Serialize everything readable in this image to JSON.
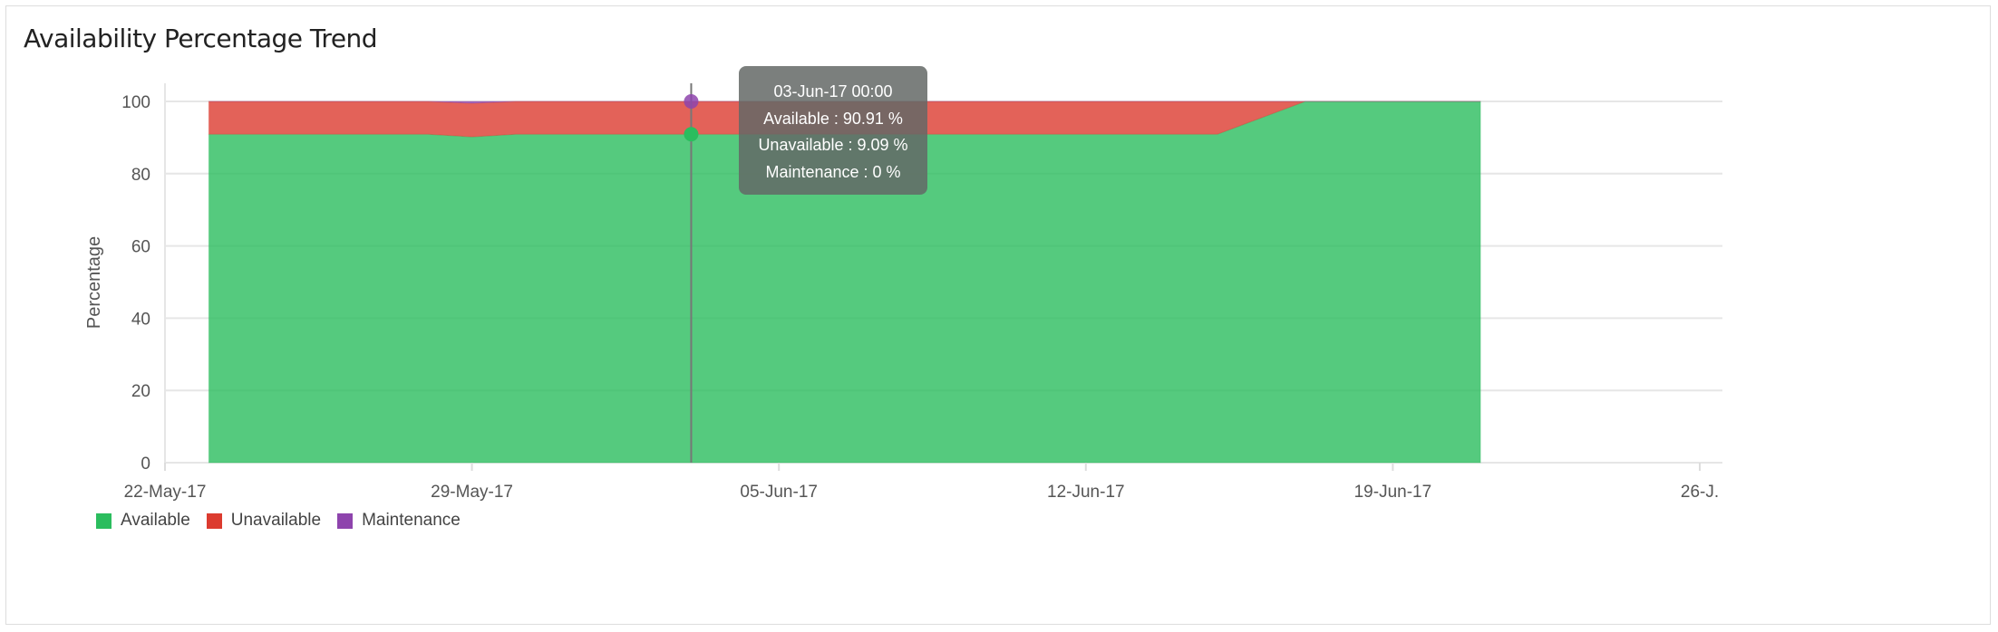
{
  "chart_data": {
    "type": "area",
    "stacked": true,
    "title": "Availability Percentage Trend",
    "ylabel": "Percentage",
    "xlabel": "",
    "ylim": [
      0,
      100
    ],
    "yticks": [
      "0",
      "20",
      "40",
      "60",
      "80",
      "100"
    ],
    "xticks": [
      "22-May-17",
      "29-May-17",
      "05-Jun-17",
      "12-Jun-17",
      "19-Jun-17",
      "26-J."
    ],
    "xlim": [
      "2017-05-22",
      "2017-06-26"
    ],
    "grid": true,
    "legend_position": "bottom-left",
    "x": [
      "2017-05-23",
      "2017-05-24",
      "2017-05-25",
      "2017-05-26",
      "2017-05-27",
      "2017-05-28",
      "2017-05-29",
      "2017-05-30",
      "2017-05-31",
      "2017-06-01",
      "2017-06-02",
      "2017-06-03",
      "2017-06-04",
      "2017-06-05",
      "2017-06-06",
      "2017-06-07",
      "2017-06-08",
      "2017-06-09",
      "2017-06-10",
      "2017-06-11",
      "2017-06-12",
      "2017-06-13",
      "2017-06-14",
      "2017-06-15",
      "2017-06-16",
      "2017-06-17",
      "2017-06-18",
      "2017-06-19",
      "2017-06-20",
      "2017-06-21"
    ],
    "series": [
      {
        "name": "Available",
        "color": "#2bbd5e",
        "values": [
          90.91,
          90.91,
          90.91,
          90.91,
          90.91,
          90.91,
          90.2,
          90.91,
          90.91,
          90.91,
          90.91,
          90.91,
          90.91,
          90.91,
          90.91,
          90.91,
          90.91,
          90.91,
          90.91,
          90.91,
          90.91,
          90.91,
          90.91,
          90.91,
          95.45,
          100,
          100,
          100,
          100,
          100
        ]
      },
      {
        "name": "Unavailable",
        "color": "#dc3b2f",
        "values": [
          9.09,
          9.09,
          9.09,
          9.09,
          9.09,
          9.09,
          9.3,
          9.09,
          9.09,
          9.09,
          9.09,
          9.09,
          9.09,
          9.09,
          9.09,
          9.09,
          9.09,
          9.09,
          9.09,
          9.09,
          9.09,
          9.09,
          9.09,
          9.09,
          4.55,
          0,
          0,
          0,
          0,
          0
        ]
      },
      {
        "name": "Maintenance",
        "color": "#8e44ad",
        "values": [
          0,
          0,
          0,
          0,
          0,
          0,
          0.5,
          0,
          0,
          0,
          0,
          0,
          0,
          0,
          0,
          0,
          0,
          0,
          0,
          0,
          0,
          0,
          0,
          0,
          0,
          0,
          0,
          0,
          0,
          0
        ]
      }
    ],
    "tooltip": {
      "date": "03-Jun-17 00:00",
      "lines": [
        "Available : 90.91 %",
        "Unavailable : 9.09 %",
        "Maintenance : 0 %"
      ]
    }
  }
}
